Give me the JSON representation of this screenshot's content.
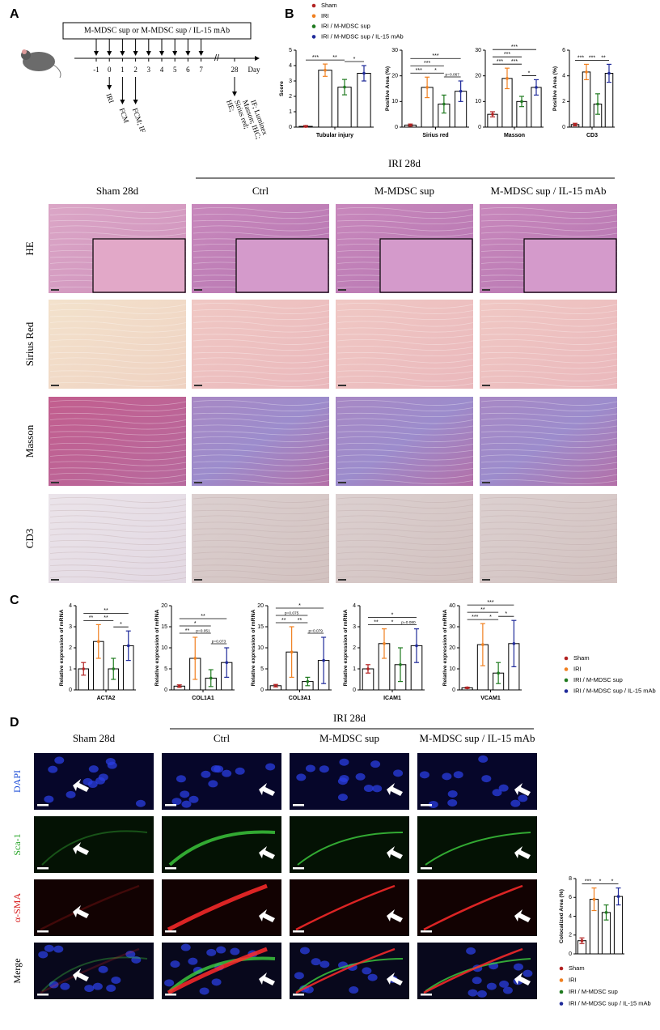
{
  "panel_labels": [
    "A",
    "B",
    "C",
    "D"
  ],
  "timeline": {
    "treatment": "M-MDSC sup or M-MDSC sup / IL-15 mAb",
    "days": [
      "-1",
      "0",
      "1",
      "2",
      "3",
      "4",
      "5",
      "6",
      "7",
      "28"
    ],
    "unit": "Day",
    "events": [
      "IRI",
      "FCM",
      "FCM; IF"
    ],
    "readouts": [
      "HE;",
      "Sirius red;",
      "Masson; IHC;",
      "IF; Luminex"
    ]
  },
  "legends": [
    {
      "entries": [
        {
          "name": "Sham",
          "color": "#b22222"
        },
        {
          "name": "IRI",
          "color": "#f08020"
        },
        {
          "name": "IRI / M-MDSC sup",
          "color": "#1f7a1f"
        },
        {
          "name": "IRI / M-MDSC sup / IL-15 mAb",
          "color": "#1f2a9a"
        }
      ]
    },
    {
      "entries": [
        {
          "name": "Sham",
          "color": "#b22222"
        },
        {
          "name": "IRI",
          "color": "#f08020"
        },
        {
          "name": "IRI / M-MDSC sup",
          "color": "#1f7a1f"
        },
        {
          "name": "IRI / M-MDSC sup / IL-15 mAb",
          "color": "#1f2a9a"
        }
      ]
    },
    {
      "entries": [
        {
          "name": "Sham",
          "color": "#b22222"
        },
        {
          "name": "IRI",
          "color": "#f08020"
        },
        {
          "name": "IRI / M-MDSC sup",
          "color": "#1f7a1f"
        },
        {
          "name": "IRI / M-MDSC sup / IL-15 mAb",
          "color": "#1f2a9a"
        }
      ]
    }
  ],
  "histology": {
    "group_label": "IRI 28d",
    "columns": [
      "Sham 28d",
      "Ctrl",
      "M-MDSC sup",
      "M-MDSC sup / IL-15 mAb"
    ],
    "rows": [
      "HE",
      "Sirius Red",
      "Masson",
      "CD3"
    ]
  },
  "immunofluorescence": {
    "group_label": "IRI 28d",
    "columns": [
      "Sham 28d",
      "Ctrl",
      "M-MDSC sup",
      "M-MDSC sup / IL-15 mAb"
    ],
    "rows": [
      "DAPI",
      "Sca-1",
      "α-SMA",
      "Merge"
    ]
  },
  "chart_data": [
    {
      "type": "bar",
      "ylabel": "Score",
      "xlabel": "Tubular injury",
      "values": [
        0.05,
        3.7,
        2.6,
        3.5
      ],
      "errors": [
        0.05,
        0.4,
        0.5,
        0.5
      ],
      "colors": [
        "#b22222",
        "#f08020",
        "#1f7a1f",
        "#1f2a9a"
      ],
      "ylim": [
        0,
        5
      ],
      "yticks": [
        0,
        1,
        2,
        3,
        4,
        5
      ],
      "annotations": [
        {
          "text": "***",
          "pair": [
            0,
            1
          ]
        },
        {
          "text": "**",
          "pair": [
            1,
            2
          ]
        },
        {
          "text": "*",
          "pair": [
            2,
            3
          ]
        }
      ]
    },
    {
      "type": "bar",
      "ylabel": "Positive Area (%)",
      "xlabel": "Sirius red",
      "values": [
        0.8,
        15.5,
        9,
        14
      ],
      "errors": [
        0.4,
        4,
        3.5,
        4
      ],
      "colors": [
        "#b22222",
        "#f08020",
        "#1f7a1f",
        "#1f2a9a"
      ],
      "ylim": [
        0,
        30
      ],
      "yticks": [
        0,
        10,
        20,
        30
      ],
      "annotations": [
        {
          "text": "***",
          "pair": [
            0,
            1
          ]
        },
        {
          "text": "*",
          "pair": [
            1,
            2
          ]
        },
        {
          "text": "p=0.067",
          "pair": [
            2,
            3
          ]
        },
        {
          "text": "***",
          "pair": [
            0,
            2
          ]
        },
        {
          "text": "***",
          "pair": [
            0,
            3
          ]
        }
      ]
    },
    {
      "type": "bar",
      "xlabel": "Masson",
      "values": [
        5,
        19,
        10,
        15.5
      ],
      "errors": [
        1,
        4,
        2,
        3
      ],
      "colors": [
        "#b22222",
        "#f08020",
        "#1f7a1f",
        "#1f2a9a"
      ],
      "ylim": [
        0,
        30
      ],
      "yticks": [
        0,
        10,
        20,
        30
      ],
      "annotations": [
        {
          "text": "***",
          "pair": [
            0,
            1
          ]
        },
        {
          "text": "***",
          "pair": [
            1,
            2
          ]
        },
        {
          "text": "*",
          "pair": [
            2,
            3
          ]
        },
        {
          "text": "***",
          "pair": [
            0,
            2
          ]
        },
        {
          "text": "***",
          "pair": [
            0,
            3
          ]
        }
      ]
    },
    {
      "type": "bar",
      "ylabel": "Positive Area (%)",
      "xlabel": "CD3",
      "values": [
        0.2,
        4.3,
        1.8,
        4.2
      ],
      "errors": [
        0.1,
        0.6,
        0.8,
        0.7
      ],
      "colors": [
        "#b22222",
        "#f08020",
        "#1f7a1f",
        "#1f2a9a"
      ],
      "ylim": [
        0,
        6
      ],
      "yticks": [
        0,
        2,
        4,
        6
      ],
      "annotations": [
        {
          "text": "***",
          "pair": [
            0,
            1
          ]
        },
        {
          "text": "***",
          "pair": [
            1,
            2
          ]
        },
        {
          "text": "**",
          "pair": [
            2,
            3
          ]
        }
      ]
    },
    {
      "type": "bar",
      "ylabel": "Relative expression of mRNA",
      "xlabel": "ACTA2",
      "values": [
        1,
        2.3,
        1,
        2.1
      ],
      "errors": [
        0.3,
        0.8,
        0.5,
        0.7
      ],
      "colors": [
        "#b22222",
        "#f08020",
        "#1f7a1f",
        "#1f2a9a"
      ],
      "ylim": [
        0,
        4
      ],
      "yticks": [
        0,
        1,
        2,
        3,
        4
      ],
      "annotations": [
        {
          "text": "**",
          "pair": [
            0,
            1
          ]
        },
        {
          "text": "**",
          "pair": [
            1,
            2
          ]
        },
        {
          "text": "*",
          "pair": [
            2,
            3
          ]
        },
        {
          "text": "**",
          "pair": [
            0,
            3
          ]
        }
      ]
    },
    {
      "type": "bar",
      "ylabel": "Relative expression of mRNA",
      "xlabel": "COL1A1",
      "values": [
        0.9,
        7.5,
        2.8,
        6.5
      ],
      "errors": [
        0.3,
        5,
        2,
        3.5
      ],
      "colors": [
        "#b22222",
        "#f08020",
        "#1f7a1f",
        "#1f2a9a"
      ],
      "ylim": [
        0,
        20
      ],
      "yticks": [
        0,
        5,
        10,
        15,
        20
      ],
      "annotations": [
        {
          "text": "**",
          "pair": [
            0,
            1
          ]
        },
        {
          "text": "p=0.051",
          "pair": [
            1,
            2
          ]
        },
        {
          "text": "p=0.073",
          "pair": [
            2,
            3
          ]
        },
        {
          "text": "*",
          "pair": [
            0,
            2
          ]
        },
        {
          "text": "**",
          "pair": [
            0,
            3
          ]
        }
      ]
    },
    {
      "type": "bar",
      "ylabel": "Relative expression of mRNA",
      "xlabel": "COL3A1",
      "values": [
        1,
        9,
        2,
        7
      ],
      "errors": [
        0.3,
        6,
        1,
        5.5
      ],
      "colors": [
        "#b22222",
        "#f08020",
        "#1f7a1f",
        "#1f2a9a"
      ],
      "ylim": [
        0,
        20
      ],
      "yticks": [
        0,
        5,
        10,
        15,
        20
      ],
      "annotations": [
        {
          "text": "**",
          "pair": [
            0,
            1
          ]
        },
        {
          "text": "**",
          "pair": [
            1,
            2
          ]
        },
        {
          "text": "p=0.075",
          "pair": [
            0,
            2
          ]
        },
        {
          "text": "p=0.079",
          "pair": [
            2,
            3
          ]
        },
        {
          "text": "*",
          "pair": [
            0,
            3
          ]
        }
      ]
    },
    {
      "type": "bar",
      "ylabel": "Relative expression of mRNA",
      "xlabel": "ICAM1",
      "values": [
        1,
        2.2,
        1.2,
        2.1
      ],
      "errors": [
        0.2,
        0.7,
        0.8,
        0.8
      ],
      "colors": [
        "#b22222",
        "#f08020",
        "#1f7a1f",
        "#1f2a9a"
      ],
      "ylim": [
        0,
        4
      ],
      "yticks": [
        0,
        1,
        2,
        3,
        4
      ],
      "annotations": [
        {
          "text": "**",
          "pair": [
            0,
            1
          ]
        },
        {
          "text": "*",
          "pair": [
            1,
            2
          ]
        },
        {
          "text": "p=0.080",
          "pair": [
            2,
            3
          ]
        },
        {
          "text": "*",
          "pair": [
            0,
            3
          ]
        }
      ]
    },
    {
      "type": "bar",
      "ylabel": "Relative expression of mRNA",
      "xlabel": "VCAM1",
      "values": [
        1,
        21.5,
        8,
        22
      ],
      "errors": [
        0.3,
        10,
        5,
        11
      ],
      "colors": [
        "#b22222",
        "#f08020",
        "#1f7a1f",
        "#1f2a9a"
      ],
      "ylim": [
        0,
        40
      ],
      "yticks": [
        0,
        10,
        20,
        30,
        40
      ],
      "annotations": [
        {
          "text": "***",
          "pair": [
            0,
            1
          ]
        },
        {
          "text": "*",
          "pair": [
            1,
            2
          ]
        },
        {
          "text": "*",
          "pair": [
            2,
            3
          ]
        },
        {
          "text": "**",
          "pair": [
            0,
            2
          ]
        },
        {
          "text": "***",
          "pair": [
            0,
            3
          ]
        }
      ]
    },
    {
      "type": "bar",
      "ylabel": "Colocalized Area (%)",
      "values": [
        1.4,
        5.8,
        4.4,
        6.1
      ],
      "errors": [
        0.3,
        1.2,
        0.8,
        0.9
      ],
      "colors": [
        "#b22222",
        "#f08020",
        "#1f7a1f",
        "#1f2a9a"
      ],
      "ylim": [
        0,
        8
      ],
      "yticks": [
        0,
        2,
        4,
        6,
        8
      ],
      "annotations": [
        {
          "text": "***",
          "pair": [
            0,
            1
          ]
        },
        {
          "text": "*",
          "pair": [
            1,
            2
          ]
        },
        {
          "text": "*",
          "pair": [
            2,
            3
          ]
        }
      ]
    }
  ]
}
